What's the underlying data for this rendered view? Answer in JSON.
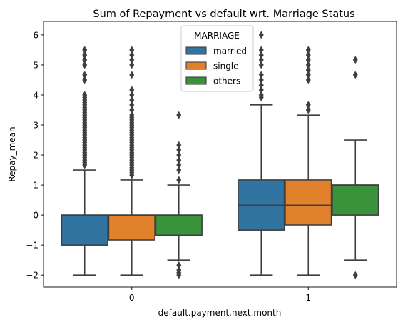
{
  "chart_data": {
    "type": "box",
    "title": "Sum of Repayment vs default wrt. Marriage Status",
    "xlabel": "default.payment.next.month",
    "ylabel": "Repay_mean",
    "categories": [
      "0",
      "1"
    ],
    "ylim": [
      -2.4,
      6.45
    ],
    "yticks": [
      -2,
      -1,
      0,
      1,
      2,
      3,
      4,
      5,
      6
    ],
    "ytick_labels": [
      "−2",
      "−1",
      "0",
      "1",
      "2",
      "3",
      "4",
      "5",
      "6"
    ],
    "grid": false,
    "legend": {
      "title": "MARRIAGE",
      "placement": "top-center"
    },
    "series": [
      {
        "name": "married",
        "color": "#3274a1",
        "boxes": [
          {
            "category": "0",
            "whisker_low": -2.0,
            "q1": -1.0,
            "median": 0.0,
            "q3": 0.0,
            "whisker_high": 1.5,
            "outliers": [
              1.67,
              1.75,
              1.83,
              1.92,
              2.0,
              2.08,
              2.17,
              2.25,
              2.33,
              2.42,
              2.5,
              2.58,
              2.67,
              2.75,
              2.83,
              2.92,
              3.0,
              3.08,
              3.17,
              3.25,
              3.33,
              3.42,
              3.5,
              3.58,
              3.67,
              3.75,
              3.83,
              3.92,
              4.0,
              4.5,
              4.67,
              5.0,
              5.17,
              5.33,
              5.5
            ]
          },
          {
            "category": "1",
            "whisker_low": -2.0,
            "q1": -0.5,
            "median": 0.33,
            "q3": 1.17,
            "whisker_high": 3.67,
            "outliers": [
              3.92,
              4.0,
              4.17,
              4.33,
              4.5,
              4.67,
              5.0,
              5.17,
              5.33,
              5.5,
              6.0
            ]
          }
        ]
      },
      {
        "name": "single",
        "color": "#e1812c",
        "boxes": [
          {
            "category": "0",
            "whisker_low": -2.0,
            "q1": -0.83,
            "median": 0.0,
            "q3": 0.0,
            "whisker_high": 1.17,
            "outliers": [
              1.33,
              1.42,
              1.5,
              1.58,
              1.67,
              1.75,
              1.83,
              1.92,
              2.0,
              2.08,
              2.17,
              2.25,
              2.33,
              2.42,
              2.5,
              2.58,
              2.67,
              2.75,
              2.83,
              2.92,
              3.0,
              3.08,
              3.17,
              3.25,
              3.33,
              3.5,
              3.67,
              3.83,
              4.0,
              4.17,
              4.67,
              5.0,
              5.17,
              5.33,
              5.5
            ]
          },
          {
            "category": "1",
            "whisker_low": -2.0,
            "q1": -0.33,
            "median": 0.33,
            "q3": 1.17,
            "whisker_high": 3.33,
            "outliers": [
              3.5,
              3.67,
              4.5,
              4.67,
              4.83,
              5.0,
              5.17,
              5.33,
              5.5
            ]
          }
        ]
      },
      {
        "name": "others",
        "color": "#3a923a",
        "boxes": [
          {
            "category": "0",
            "whisker_low": -1.5,
            "q1": -0.67,
            "median": 0.0,
            "q3": 0.0,
            "whisker_high": 1.0,
            "outliers": [
              -2.0,
              -1.92,
              -1.83,
              -1.67,
              1.17,
              1.5,
              1.67,
              1.83,
              2.0,
              2.17,
              2.33,
              3.33
            ]
          },
          {
            "category": "1",
            "whisker_low": -1.5,
            "q1": 0.0,
            "median": 1.0,
            "q3": 1.0,
            "whisker_high": 2.5,
            "outliers": [
              -2.0,
              4.67,
              5.17
            ]
          }
        ]
      }
    ]
  }
}
